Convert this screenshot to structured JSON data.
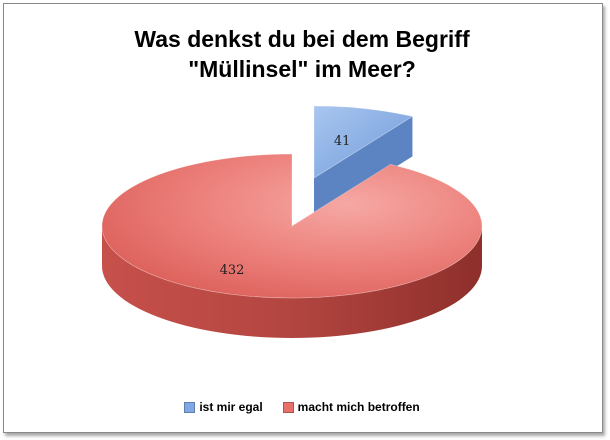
{
  "chart_data": {
    "type": "pie",
    "style": "3d-exploded",
    "title_lines": [
      "Was denkst du bei dem Begriff",
      "\"Müllinsel\" im Meer?"
    ],
    "slices": [
      {
        "label": "ist mir egal",
        "value": 41,
        "color": "#7fa8e4",
        "side_color": "#4a77bd"
      },
      {
        "label": "macht mich betroffen",
        "value": 432,
        "color": "#e8706b",
        "side_color": "#a73a36"
      }
    ],
    "legend_position": "bottom"
  }
}
